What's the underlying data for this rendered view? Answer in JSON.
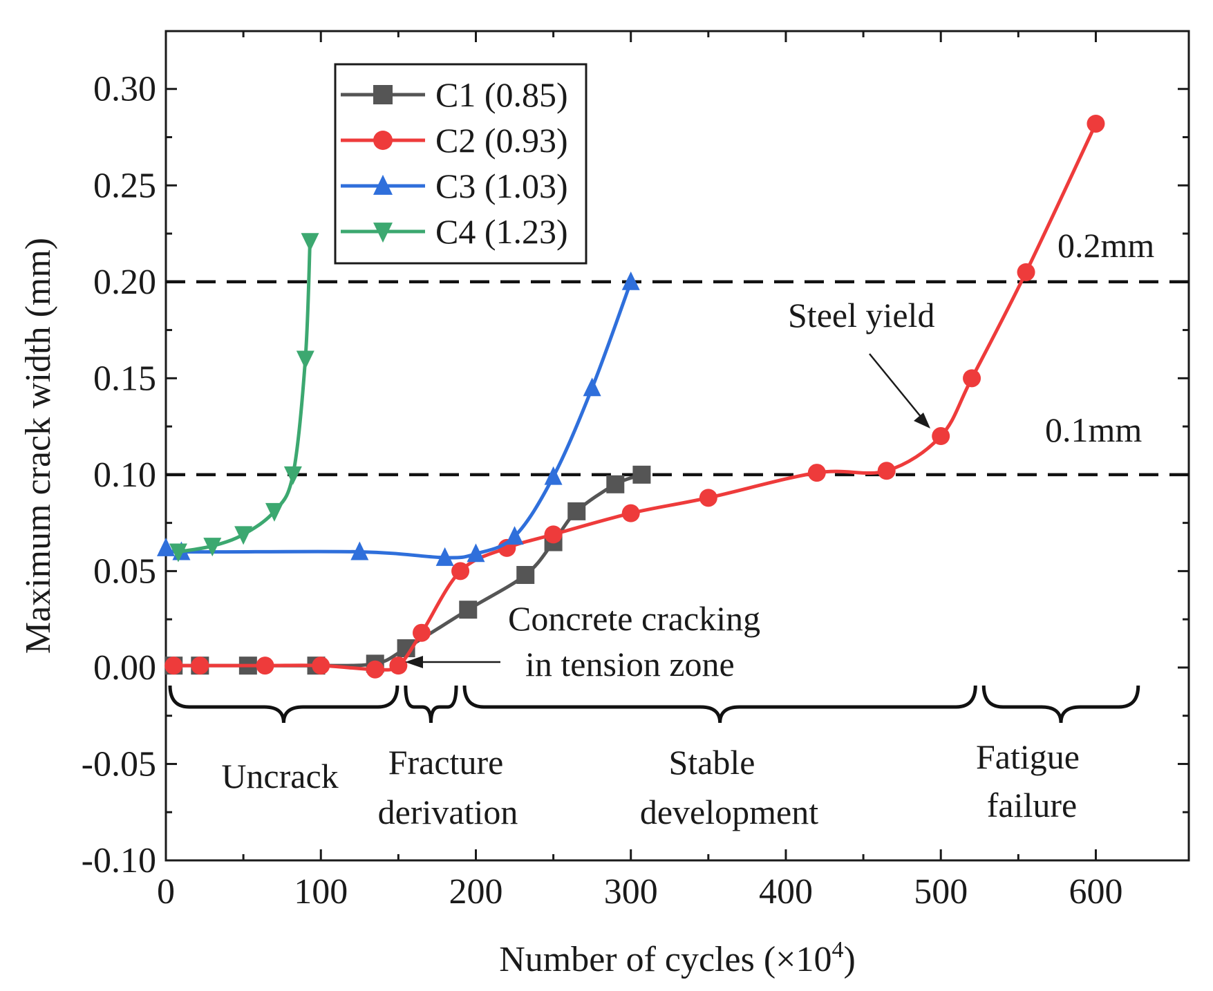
{
  "chart_data": {
    "type": "line",
    "xlabel": "Number of cycles (×10",
    "xlabel_sup": "4",
    "xlabel_close": ")",
    "ylabel": "Maximum crack width (mm)",
    "xlim": [
      0,
      660
    ],
    "ylim": [
      -0.1,
      0.33
    ],
    "xticks": [
      0,
      100,
      200,
      300,
      400,
      500,
      600
    ],
    "xtick_labels": [
      "0",
      "100",
      "200",
      "300",
      "400",
      "500",
      "600"
    ],
    "yticks": [
      -0.1,
      -0.05,
      0.0,
      0.05,
      0.1,
      0.15,
      0.2,
      0.25,
      0.3
    ],
    "ytick_labels": [
      "-0.10",
      "-0.05",
      "0.00",
      "0.05",
      "0.10",
      "0.15",
      "0.20",
      "0.25",
      "0.30"
    ],
    "grid": false,
    "legend_position": "top-left",
    "series": [
      {
        "name": "C1 (0.85)",
        "color": "#555555",
        "marker": "square",
        "points": [
          [
            5,
            0.001
          ],
          [
            22,
            0.001
          ],
          [
            53,
            0.001
          ],
          [
            97,
            0.001
          ],
          [
            135,
            0.002
          ],
          [
            155,
            0.01
          ],
          [
            195,
            0.03
          ],
          [
            232,
            0.048
          ],
          [
            250,
            0.065
          ],
          [
            265,
            0.081
          ],
          [
            290,
            0.095
          ],
          [
            307,
            0.1
          ]
        ]
      },
      {
        "name": "C2 (0.93)",
        "color": "#ee3b3b",
        "marker": "circle",
        "points": [
          [
            5,
            0.001
          ],
          [
            22,
            0.001
          ],
          [
            64,
            0.001
          ],
          [
            100,
            0.001
          ],
          [
            135,
            -0.001
          ],
          [
            150,
            0.001
          ],
          [
            165,
            0.018
          ],
          [
            190,
            0.05
          ],
          [
            220,
            0.062
          ],
          [
            250,
            0.069
          ],
          [
            300,
            0.08
          ],
          [
            350,
            0.088
          ],
          [
            420,
            0.101
          ],
          [
            465,
            0.102
          ],
          [
            500,
            0.12
          ],
          [
            520,
            0.15
          ],
          [
            555,
            0.205
          ],
          [
            600,
            0.282
          ]
        ]
      },
      {
        "name": "C3 (1.03)",
        "color": "#2f6fdb",
        "marker": "triangle-up",
        "points": [
          [
            0,
            0.062
          ],
          [
            10,
            0.06
          ],
          [
            125,
            0.06
          ],
          [
            180,
            0.057
          ],
          [
            200,
            0.059
          ],
          [
            225,
            0.068
          ],
          [
            250,
            0.099
          ],
          [
            275,
            0.145
          ],
          [
            300,
            0.2
          ]
        ]
      },
      {
        "name": "C4 (1.23)",
        "color": "#3ca870",
        "marker": "triangle-down",
        "points": [
          [
            8,
            0.06
          ],
          [
            30,
            0.063
          ],
          [
            50,
            0.069
          ],
          [
            70,
            0.081
          ],
          [
            82,
            0.1
          ],
          [
            90,
            0.16
          ],
          [
            93,
            0.221
          ]
        ]
      }
    ],
    "reference_lines": [
      {
        "y": 0.1,
        "label": "0.1mm",
        "style": "dashed"
      },
      {
        "y": 0.2,
        "label": "0.2mm",
        "style": "dashed"
      }
    ],
    "annotations": {
      "steel_yield": "Steel yield",
      "concrete_line1": "Concrete cracking",
      "concrete_line2": "in tension zone"
    },
    "stages": [
      {
        "lines": [
          "Uncrack"
        ],
        "from": 0,
        "to": 152
      },
      {
        "lines": [
          "Fracture",
          "derivation"
        ],
        "from": 152,
        "to": 190
      },
      {
        "lines": [
          "Stable",
          "development"
        ],
        "from": 190,
        "to": 525
      },
      {
        "lines": [
          "Fatigue",
          "failure"
        ],
        "from": 525,
        "to": 630
      }
    ]
  }
}
